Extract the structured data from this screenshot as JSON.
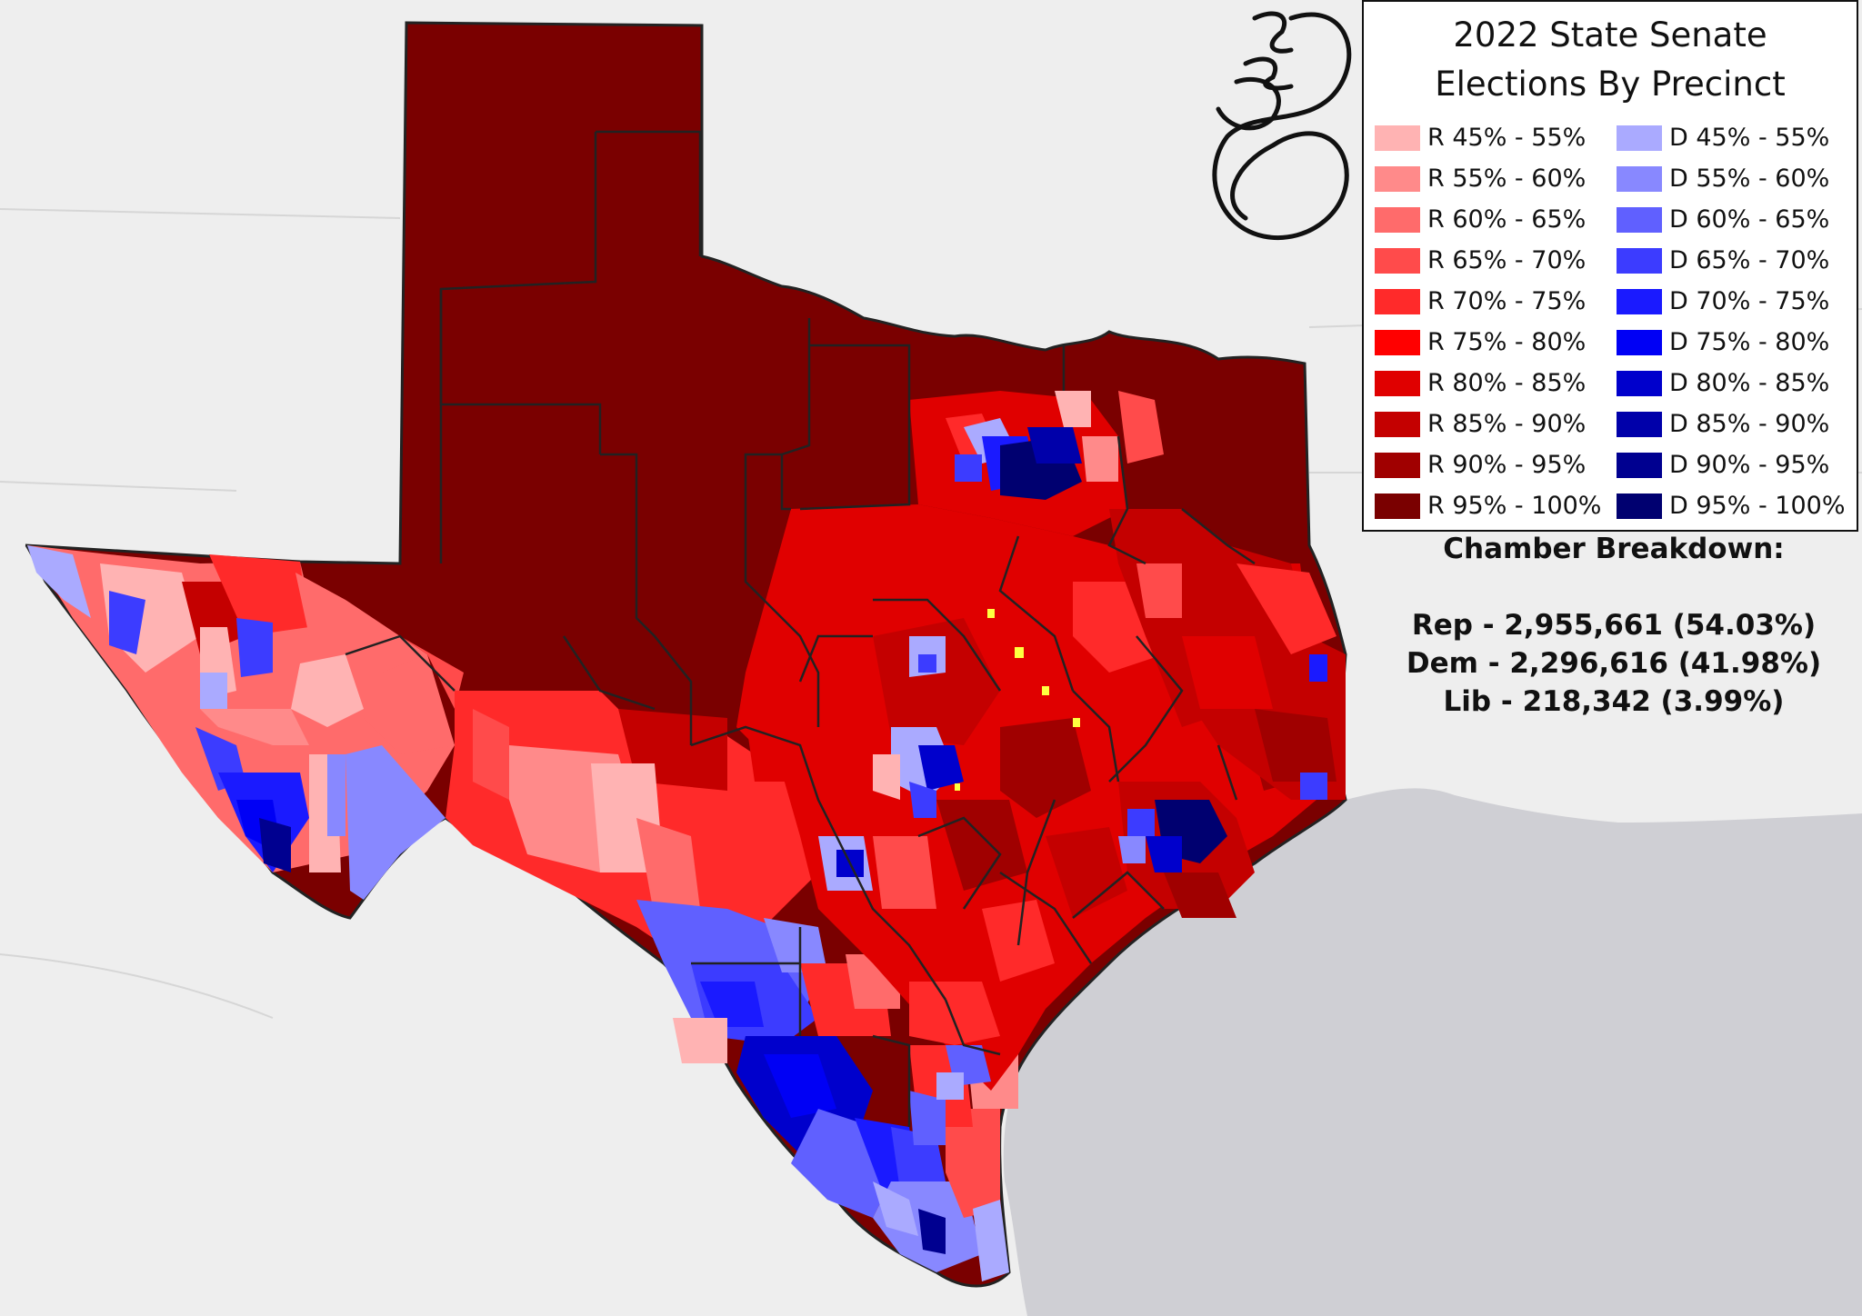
{
  "legend": {
    "title_line1": "2022 State Senate",
    "title_line2": "Elections By Precinct",
    "rep": [
      {
        "label": "R 45% - 55%",
        "color": "#ffb3b3"
      },
      {
        "label": "R 55% - 60%",
        "color": "#ff8a8a"
      },
      {
        "label": "R 60% - 65%",
        "color": "#ff6b6b"
      },
      {
        "label": "R 65% - 70%",
        "color": "#ff4b4b"
      },
      {
        "label": "R 70% - 75%",
        "color": "#ff2a2a"
      },
      {
        "label": "R 75% - 80%",
        "color": "#ff0000"
      },
      {
        "label": "R 80% - 85%",
        "color": "#e00000"
      },
      {
        "label": "R 85% - 90%",
        "color": "#c40000"
      },
      {
        "label": "R 90% - 95%",
        "color": "#a00000"
      },
      {
        "label": "R 95% - 100%",
        "color": "#7a0000"
      }
    ],
    "dem": [
      {
        "label": "D 45% - 55%",
        "color": "#aaaaff"
      },
      {
        "label": "D 55% - 60%",
        "color": "#8888ff"
      },
      {
        "label": "D 60% - 65%",
        "color": "#6060ff"
      },
      {
        "label": "D 65% - 70%",
        "color": "#3c3cff"
      },
      {
        "label": "D 70% - 75%",
        "color": "#1a1aff"
      },
      {
        "label": "D 75% - 80%",
        "color": "#0000f5"
      },
      {
        "label": "D 80% - 85%",
        "color": "#0000cc"
      },
      {
        "label": "D 85% - 90%",
        "color": "#0000aa"
      },
      {
        "label": "D 90% - 95%",
        "color": "#000090"
      },
      {
        "label": "D 95% - 100%",
        "color": "#000070"
      }
    ]
  },
  "breakdown": {
    "heading": "Chamber Breakdown:",
    "rep": "Rep - 2,955,661 (54.03%)",
    "dem": "Dem - 2,296,616 (41.98%)",
    "lib": "Lib - 218,342 (3.99%)"
  },
  "colors": {
    "background": "#eeeeee",
    "water": "#cfcfd4",
    "tie": "#ffff40"
  }
}
